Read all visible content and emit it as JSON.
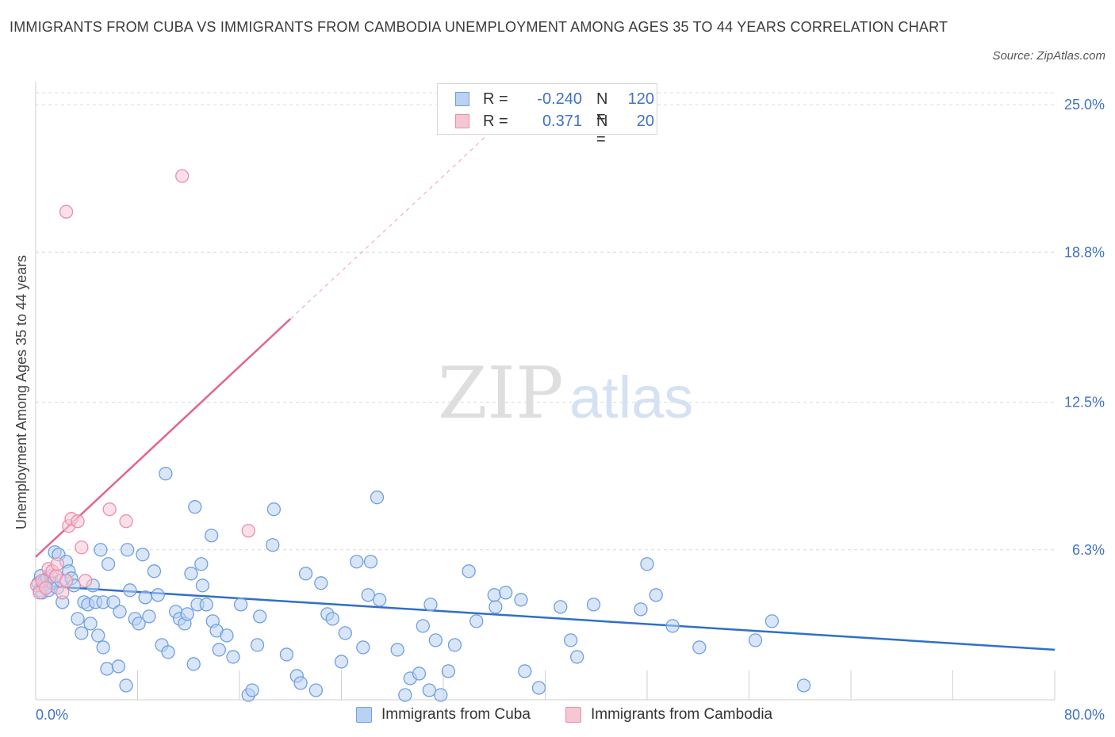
{
  "header": {
    "title": "IMMIGRANTS FROM CUBA VS IMMIGRANTS FROM CAMBODIA UNEMPLOYMENT AMONG AGES 35 TO 44 YEARS CORRELATION CHART",
    "source": "Source: ZipAtlas.com"
  },
  "watermark": {
    "zip": "ZIP",
    "atlas": "atlas"
  },
  "legend": {
    "r_label": "R =",
    "n_label": "N =",
    "cuba": {
      "r": "-0.240",
      "n": "120"
    },
    "cambodia": {
      "r": "0.371",
      "n": "20"
    }
  },
  "colors": {
    "cuba_fill": "#b9d2f3",
    "cuba_stroke": "#6f9fe0",
    "cuba_line": "#2f6fcc",
    "cambodia_fill": "#f7c6d3",
    "cambodia_stroke": "#ea8fab",
    "cambodia_line": "#e2648c",
    "tick_label": "#3f72c4",
    "grid": "#dcdcdc"
  },
  "chart_data": {
    "type": "scatter",
    "title": "IMMIGRANTS FROM CUBA VS IMMIGRANTS FROM CAMBODIA UNEMPLOYMENT AMONG AGES 35 TO 44 YEARS CORRELATION CHART",
    "xlabel": "",
    "ylabel": "Unemployment Among Ages 35 to 44 years",
    "xlim": [
      0,
      80
    ],
    "ylim": [
      0,
      25.5
    ],
    "x_ticks": [
      0,
      80
    ],
    "x_tick_labels": [
      "0.0%",
      "80.0%"
    ],
    "y_ticks": [
      6.3,
      12.5,
      18.8,
      25.0
    ],
    "y_tick_labels": [
      "6.3%",
      "12.5%",
      "18.8%",
      "25.0%"
    ],
    "grid": "horizontal dashed",
    "legend_placement": "top-center",
    "series": [
      {
        "name": "Immigrants from Cuba",
        "r": -0.24,
        "n": 120,
        "trend": {
          "x": [
            0,
            80
          ],
          "y": [
            4.8,
            2.1
          ]
        },
        "points": [
          [
            0.2,
            4.9
          ],
          [
            0.3,
            4.6
          ],
          [
            0.4,
            5.2
          ],
          [
            0.5,
            4.5
          ],
          [
            0.6,
            4.8
          ],
          [
            0.7,
            5.0
          ],
          [
            0.8,
            4.7
          ],
          [
            0.9,
            5.1
          ],
          [
            1.0,
            4.6
          ],
          [
            1.2,
            5.2
          ],
          [
            1.3,
            4.9
          ],
          [
            1.5,
            6.2
          ],
          [
            1.7,
            4.7
          ],
          [
            1.8,
            6.1
          ],
          [
            2.0,
            5.0
          ],
          [
            2.1,
            4.1
          ],
          [
            2.4,
            5.8
          ],
          [
            2.6,
            5.4
          ],
          [
            2.8,
            5.1
          ],
          [
            3.0,
            4.8
          ],
          [
            5.1,
            6.3
          ],
          [
            3.3,
            3.4
          ],
          [
            3.6,
            2.8
          ],
          [
            3.8,
            4.1
          ],
          [
            4.1,
            4.0
          ],
          [
            4.3,
            3.2
          ],
          [
            4.5,
            4.8
          ],
          [
            4.9,
            2.7
          ],
          [
            5.3,
            2.2
          ],
          [
            5.6,
            1.3
          ],
          [
            6.5,
            1.4
          ],
          [
            7.1,
            0.6
          ],
          [
            4.7,
            4.1
          ],
          [
            5.3,
            4.1
          ],
          [
            5.7,
            5.7
          ],
          [
            6.1,
            4.1
          ],
          [
            6.6,
            3.7
          ],
          [
            7.2,
            6.3
          ],
          [
            7.4,
            4.6
          ],
          [
            7.8,
            3.4
          ],
          [
            8.1,
            3.2
          ],
          [
            8.4,
            6.1
          ],
          [
            8.6,
            4.3
          ],
          [
            8.9,
            3.5
          ],
          [
            9.3,
            5.4
          ],
          [
            9.6,
            4.4
          ],
          [
            9.9,
            2.3
          ],
          [
            10.4,
            2.0
          ],
          [
            11.0,
            3.7
          ],
          [
            11.3,
            3.4
          ],
          [
            11.7,
            3.2
          ],
          [
            11.9,
            3.6
          ],
          [
            12.2,
            5.3
          ],
          [
            12.4,
            1.5
          ],
          [
            12.7,
            4.0
          ],
          [
            13.0,
            5.7
          ],
          [
            13.1,
            4.8
          ],
          [
            13.4,
            4.0
          ],
          [
            13.9,
            3.3
          ],
          [
            14.2,
            2.9
          ],
          [
            10.2,
            9.5
          ],
          [
            12.5,
            8.1
          ],
          [
            13.8,
            6.9
          ],
          [
            14.4,
            2.1
          ],
          [
            15.0,
            2.7
          ],
          [
            15.5,
            1.8
          ],
          [
            16.1,
            4.0
          ],
          [
            16.7,
            0.2
          ],
          [
            17.0,
            0.4
          ],
          [
            17.6,
            3.5
          ],
          [
            17.4,
            2.3
          ],
          [
            18.6,
            6.5
          ],
          [
            18.7,
            8.0
          ],
          [
            19.7,
            1.9
          ],
          [
            20.5,
            1.0
          ],
          [
            21.2,
            5.3
          ],
          [
            22.0,
            0.4
          ],
          [
            22.4,
            4.9
          ],
          [
            22.9,
            3.6
          ],
          [
            23.3,
            3.4
          ],
          [
            24.0,
            1.6
          ],
          [
            24.3,
            2.8
          ],
          [
            25.2,
            5.8
          ],
          [
            25.7,
            2.2
          ],
          [
            26.3,
            5.8
          ],
          [
            26.8,
            8.5
          ],
          [
            27.0,
            4.2
          ],
          [
            28.4,
            2.1
          ],
          [
            29.0,
            0.2
          ],
          [
            29.4,
            0.9
          ],
          [
            30.1,
            1.1
          ],
          [
            30.4,
            3.1
          ],
          [
            30.9,
            0.4
          ],
          [
            31.0,
            4.0
          ],
          [
            31.4,
            2.5
          ],
          [
            32.4,
            1.2
          ],
          [
            32.9,
            2.3
          ],
          [
            34.6,
            3.3
          ],
          [
            34.0,
            5.4
          ],
          [
            36.1,
            3.9
          ],
          [
            36.0,
            4.4
          ],
          [
            38.1,
            4.2
          ],
          [
            36.9,
            4.5
          ],
          [
            38.4,
            1.2
          ],
          [
            39.5,
            0.5
          ],
          [
            41.2,
            3.9
          ],
          [
            42.0,
            2.5
          ],
          [
            42.5,
            1.8
          ],
          [
            43.8,
            4.0
          ],
          [
            47.5,
            3.8
          ],
          [
            48.0,
            5.7
          ],
          [
            48.7,
            4.4
          ],
          [
            50.0,
            3.1
          ],
          [
            57.8,
            3.3
          ],
          [
            60.3,
            0.6
          ],
          [
            31.8,
            0.2
          ],
          [
            52.1,
            2.2
          ],
          [
            56.5,
            2.5
          ],
          [
            26.1,
            4.4
          ],
          [
            20.8,
            0.7
          ]
        ]
      },
      {
        "name": "Immigrants from Cambodia",
        "r": 0.371,
        "n": 20,
        "trend": {
          "x": [
            0,
            20
          ],
          "y": [
            6.0,
            16.0
          ]
        },
        "points": [
          [
            0.1,
            4.8
          ],
          [
            0.3,
            4.5
          ],
          [
            0.5,
            5.0
          ],
          [
            0.8,
            4.7
          ],
          [
            1.0,
            5.5
          ],
          [
            1.3,
            5.4
          ],
          [
            1.6,
            5.2
          ],
          [
            1.7,
            5.7
          ],
          [
            2.1,
            4.5
          ],
          [
            2.4,
            5.0
          ],
          [
            2.6,
            7.3
          ],
          [
            2.8,
            7.6
          ],
          [
            3.3,
            7.5
          ],
          [
            3.6,
            6.4
          ],
          [
            3.9,
            5.0
          ],
          [
            5.8,
            8.0
          ],
          [
            7.1,
            7.5
          ],
          [
            16.7,
            7.1
          ],
          [
            11.5,
            22.0
          ],
          [
            2.4,
            20.5
          ]
        ]
      }
    ]
  },
  "bottom_legend": {
    "cuba": "Immigrants from Cuba",
    "cambodia": "Immigrants from Cambodia"
  }
}
